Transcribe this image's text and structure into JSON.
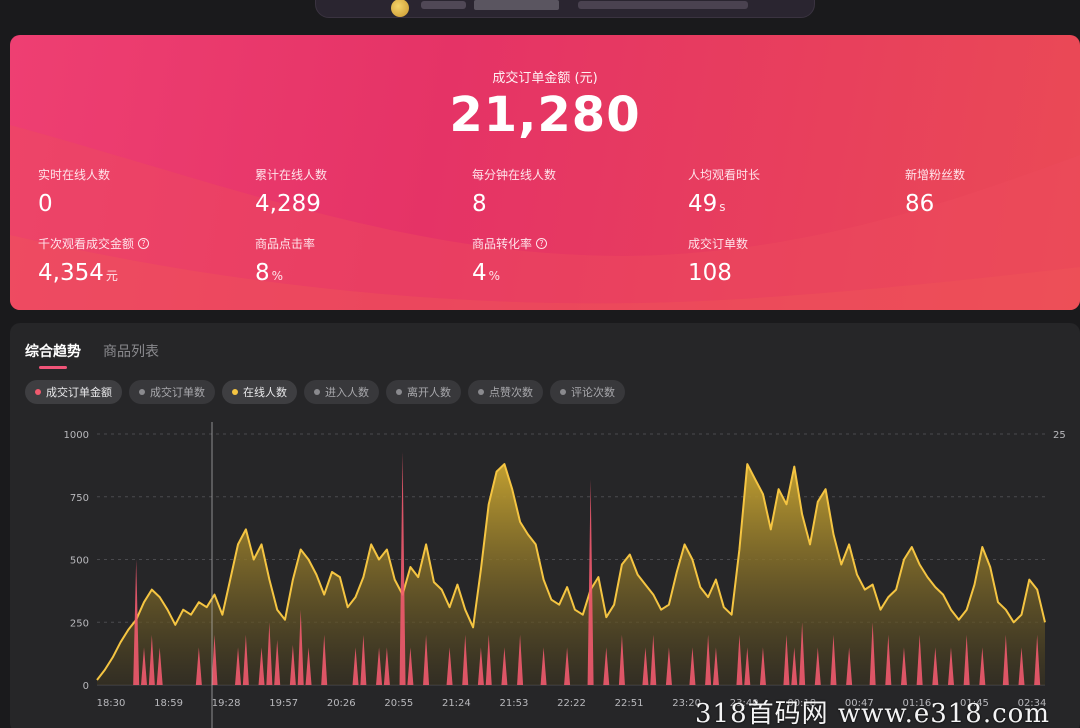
{
  "hero": {
    "title": "成交订单金额 (元)",
    "value": "21,280",
    "metrics": [
      {
        "label": "实时在线人数",
        "value": "0",
        "unit": "",
        "help": false
      },
      {
        "label": "累计在线人数",
        "value": "4,289",
        "unit": "",
        "help": false
      },
      {
        "label": "每分钟在线人数",
        "value": "8",
        "unit": "",
        "help": false
      },
      {
        "label": "人均观看时长",
        "value": "49",
        "unit": "s",
        "help": false
      },
      {
        "label": "新增粉丝数",
        "value": "86",
        "unit": "",
        "help": false
      },
      {
        "label": "千次观看成交金额",
        "value": "4,354",
        "unit": "元",
        "help": true
      },
      {
        "label": "商品点击率",
        "value": "8",
        "unit": "%",
        "help": false
      },
      {
        "label": "商品转化率",
        "value": "4",
        "unit": "%",
        "help": true
      },
      {
        "label": "成交订单数",
        "value": "108",
        "unit": "",
        "help": false
      }
    ]
  },
  "tabs": [
    {
      "label": "综合趋势",
      "active": true
    },
    {
      "label": "商品列表",
      "active": false
    }
  ],
  "chips": [
    {
      "label": "成交订单金额",
      "dot": "#f05a6e",
      "on": true
    },
    {
      "label": "成交订单数",
      "dot": "#8a8a8e",
      "on": false
    },
    {
      "label": "在线人数",
      "dot": "#f5c542",
      "on": true
    },
    {
      "label": "进入人数",
      "dot": "#8a8a8e",
      "on": false
    },
    {
      "label": "离开人数",
      "dot": "#8a8a8e",
      "on": false
    },
    {
      "label": "点赞次数",
      "dot": "#8a8a8e",
      "on": false
    },
    {
      "label": "评论次数",
      "dot": "#8a8a8e",
      "on": false
    }
  ],
  "chart_data": {
    "type": "area",
    "title": "",
    "y_left_ticks": [
      "0",
      "250",
      "500",
      "750",
      "1000"
    ],
    "y_left_range": [
      0,
      1000
    ],
    "y_right_ticks": [
      "25"
    ],
    "x_ticks": [
      "18:30",
      "18:59",
      "19:28",
      "19:57",
      "20:26",
      "20:55",
      "21:24",
      "21:53",
      "22:22",
      "22:51",
      "23:20",
      "23:49",
      "00:18",
      "00:47",
      "01:16",
      "01:45",
      "02:34"
    ],
    "grid": "horizontal-dashed",
    "series": [
      {
        "name": "在线人数",
        "color": "#f5c542",
        "kind": "area",
        "values": [
          20,
          60,
          110,
          170,
          220,
          260,
          330,
          380,
          350,
          300,
          240,
          300,
          280,
          330,
          310,
          360,
          280,
          420,
          560,
          620,
          500,
          560,
          420,
          300,
          260,
          420,
          540,
          500,
          440,
          360,
          450,
          430,
          310,
          350,
          430,
          560,
          500,
          540,
          420,
          360,
          470,
          430,
          560,
          410,
          380,
          310,
          400,
          300,
          230,
          460,
          720,
          850,
          880,
          780,
          650,
          600,
          560,
          420,
          340,
          320,
          390,
          300,
          280,
          380,
          430,
          270,
          320,
          480,
          520,
          440,
          400,
          360,
          300,
          320,
          450,
          560,
          500,
          390,
          350,
          420,
          310,
          280,
          540,
          880,
          820,
          760,
          620,
          780,
          720,
          870,
          680,
          560,
          730,
          780,
          600,
          480,
          560,
          440,
          380,
          400,
          300,
          350,
          380,
          500,
          550,
          480,
          430,
          390,
          360,
          300,
          260,
          300,
          400,
          550,
          470,
          330,
          300,
          250,
          280,
          420,
          380,
          250
        ]
      },
      {
        "name": "成交订单金额",
        "color": "#f05a6e",
        "kind": "bars",
        "values": [
          0,
          0,
          0,
          0,
          0,
          500,
          150,
          200,
          150,
          0,
          0,
          0,
          0,
          150,
          0,
          200,
          0,
          0,
          150,
          200,
          0,
          150,
          250,
          180,
          0,
          160,
          300,
          150,
          0,
          200,
          0,
          0,
          0,
          150,
          200,
          0,
          150,
          150,
          0,
          930,
          150,
          0,
          200,
          0,
          0,
          150,
          0,
          200,
          0,
          150,
          200,
          0,
          150,
          0,
          200,
          0,
          0,
          150,
          0,
          0,
          150,
          0,
          0,
          820,
          0,
          150,
          0,
          200,
          0,
          0,
          150,
          200,
          0,
          150,
          0,
          0,
          150,
          0,
          200,
          150,
          0,
          0,
          200,
          150,
          0,
          150,
          0,
          0,
          200,
          150,
          250,
          0,
          150,
          0,
          200,
          0,
          150,
          0,
          0,
          250,
          0,
          200,
          0,
          150,
          0,
          200,
          0,
          150,
          0,
          150,
          0,
          200,
          0,
          150,
          0,
          0,
          200,
          0,
          150,
          0,
          200,
          0
        ]
      }
    ]
  },
  "watermark": "318首码网  www.e318.com"
}
